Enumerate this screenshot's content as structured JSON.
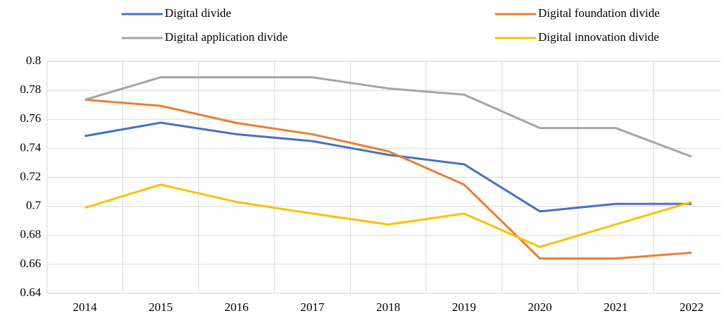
{
  "chart_data": {
    "type": "line",
    "categories": [
      "2014",
      "2015",
      "2016",
      "2017",
      "2018",
      "2019",
      "2020",
      "2021",
      "2022"
    ],
    "series": [
      {
        "name": "Digital divide",
        "color": "#4472c4",
        "values": [
          0.7485,
          0.7577,
          0.7497,
          0.745,
          0.7355,
          0.729,
          0.6965,
          0.7017,
          0.7017
        ]
      },
      {
        "name": "Digital foundation divide",
        "color": "#ed7d31",
        "values": [
          0.7735,
          0.7693,
          0.7575,
          0.7497,
          0.738,
          0.715,
          0.664,
          0.664,
          0.668
        ]
      },
      {
        "name": "Digital application divide",
        "color": "#a5a5a5",
        "values": [
          0.7735,
          0.789,
          0.789,
          0.789,
          0.7813,
          0.777,
          0.754,
          0.754,
          0.7343
        ]
      },
      {
        "name": "Digital innovation divide",
        "color": "#ffc000",
        "values": [
          0.699,
          0.715,
          0.703,
          0.695,
          0.6875,
          0.695,
          0.672,
          0.6875,
          0.703
        ]
      }
    ],
    "ylim": [
      0.64,
      0.8
    ],
    "yticks": [
      0.64,
      0.66,
      0.68,
      0.7,
      0.72,
      0.74,
      0.76,
      0.78,
      0.8
    ],
    "grid": true,
    "legend": "top"
  }
}
